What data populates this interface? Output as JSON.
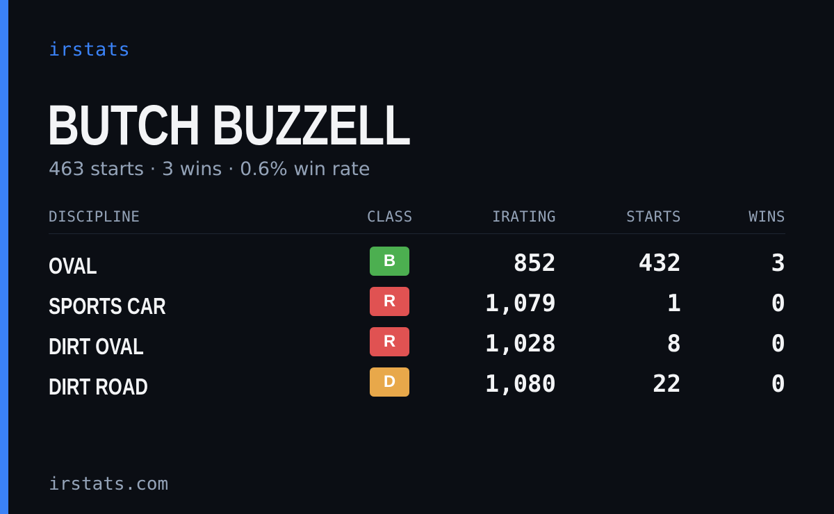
{
  "brand": "irstats",
  "driver": {
    "name": "BUTCH BUZZELL",
    "starts": "463 starts",
    "wins": "3 wins",
    "win_rate": "0.6% win rate",
    "separator": "·"
  },
  "table": {
    "headers": {
      "discipline": "DISCIPLINE",
      "class": "CLASS",
      "irating": "IRATING",
      "starts": "STARTS",
      "wins": "WINS"
    },
    "rows": [
      {
        "discipline": "OVAL",
        "class": "B",
        "class_color": "#4caf50",
        "irating": "852",
        "starts": "432",
        "wins": "3"
      },
      {
        "discipline": "SPORTS CAR",
        "class": "R",
        "class_color": "#e05252",
        "irating": "1,079",
        "starts": "1",
        "wins": "0"
      },
      {
        "discipline": "DIRT OVAL",
        "class": "R",
        "class_color": "#e05252",
        "irating": "1,028",
        "starts": "8",
        "wins": "0"
      },
      {
        "discipline": "DIRT ROAD",
        "class": "D",
        "class_color": "#e8a84a",
        "irating": "1,080",
        "starts": "22",
        "wins": "0"
      }
    ]
  },
  "footer": {
    "url": "irstats.com"
  },
  "colors": {
    "accent": "#3b82f6",
    "background": "#0b0e14",
    "muted": "#94a3b8"
  }
}
